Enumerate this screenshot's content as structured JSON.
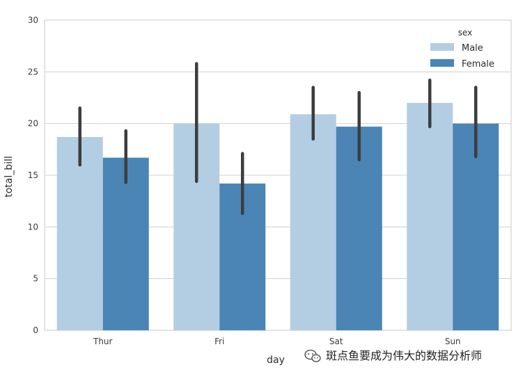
{
  "chart_data": {
    "type": "bar",
    "categories": [
      "Thur",
      "Fri",
      "Sat",
      "Sun"
    ],
    "series": [
      {
        "name": "Male",
        "color": "#b3cde3",
        "values": [
          18.7,
          20.0,
          20.9,
          22.0
        ],
        "ci_low": [
          16.0,
          14.4,
          18.5,
          19.7
        ],
        "ci_high": [
          21.5,
          25.8,
          23.5,
          24.2
        ]
      },
      {
        "name": "Female",
        "color": "#4a85b5",
        "values": [
          16.7,
          14.2,
          19.7,
          20.0
        ],
        "ci_low": [
          14.3,
          11.3,
          16.5,
          16.8
        ],
        "ci_high": [
          19.3,
          17.1,
          23.0,
          23.5
        ]
      }
    ],
    "ylim": [
      0,
      30
    ],
    "yticks": [
      "0",
      "5",
      "10",
      "15",
      "20",
      "25",
      "30"
    ],
    "xlabel": "day",
    "ylabel": "total_bill",
    "legend": {
      "title": "sex",
      "placement": "top-right"
    },
    "grid": "horizontal",
    "errorbar_color": "#3d3d3d"
  },
  "watermark": {
    "text": "斑点鱼要成为伟大的数据分析师"
  }
}
